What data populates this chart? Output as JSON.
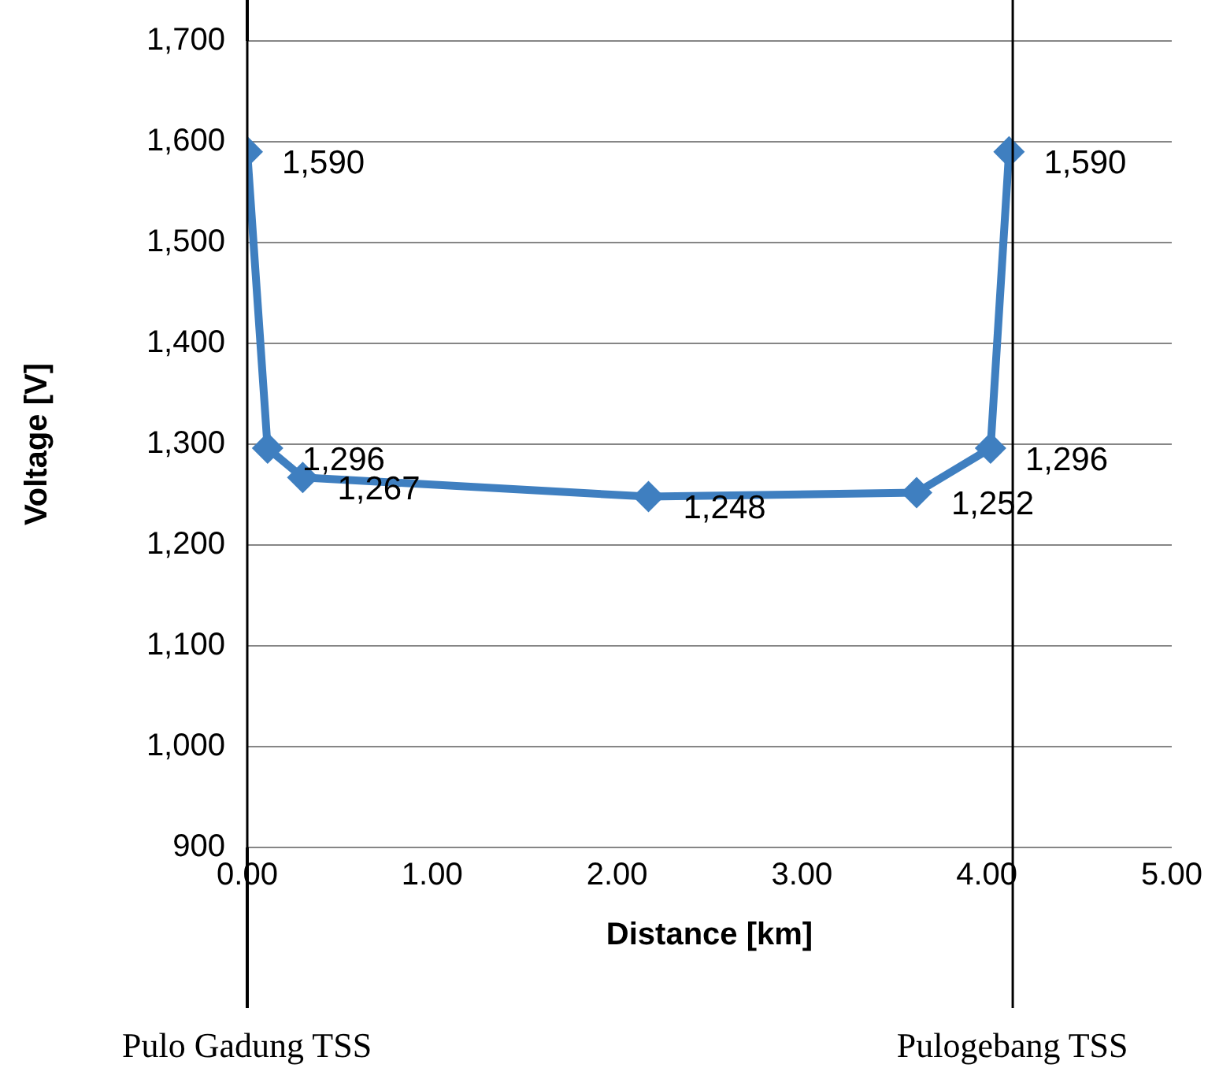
{
  "chart_data": {
    "type": "line",
    "xlabel": "Distance [km]",
    "ylabel": "Voltage [V]",
    "xlim": [
      0,
      5
    ],
    "xticks": [
      {
        "value": 0,
        "label": "0.00"
      },
      {
        "value": 1,
        "label": "1.00"
      },
      {
        "value": 2,
        "label": "2.00"
      },
      {
        "value": 3,
        "label": "3.00"
      },
      {
        "value": 4,
        "label": "4.00"
      },
      {
        "value": 5,
        "label": "5.00"
      }
    ],
    "ylim": [
      900,
      1700
    ],
    "yticks": [
      {
        "value": 900,
        "label": "900"
      },
      {
        "value": 1000,
        "label": "1,000"
      },
      {
        "value": 1100,
        "label": "1,100"
      },
      {
        "value": 1200,
        "label": "1,200"
      },
      {
        "value": 1300,
        "label": "1,300"
      },
      {
        "value": 1400,
        "label": "1,400"
      },
      {
        "value": 1500,
        "label": "1,500"
      },
      {
        "value": 1600,
        "label": "1,600"
      },
      {
        "value": 1700,
        "label": "1,700"
      }
    ],
    "series": [
      {
        "color": "#3f7fc0",
        "x": [
          0,
          0.11,
          0.3,
          2.17,
          3.62,
          4.02,
          4.12
        ],
        "values": [
          1590,
          1296,
          1267,
          1248,
          1252,
          1296,
          1590
        ],
        "value_labels": [
          "1,590",
          "1,296",
          "1,267",
          "1,248",
          "1,252",
          "1,296",
          "1,590"
        ]
      }
    ],
    "ref_lines": [
      {
        "axis": "x",
        "value": 0,
        "label": "Pulo Gadung TSS",
        "color": "#000000"
      },
      {
        "axis": "x",
        "value": 4.14,
        "label": "Pulogebang TSS",
        "color": "#000000"
      }
    ],
    "grid": "y",
    "legend": false,
    "marker": "diamond",
    "line_style": "solid"
  }
}
